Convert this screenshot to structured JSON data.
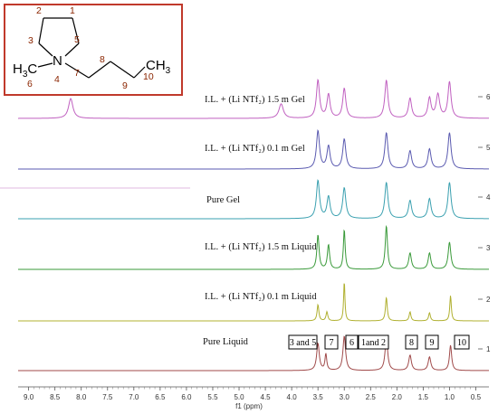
{
  "chart_data": {
    "type": "line",
    "xlabel": "f1 (ppm)",
    "xlim": [
      9.2,
      0.25
    ],
    "x_ticks": [
      "9.0",
      "8.5",
      "8.0",
      "7.5",
      "7.0",
      "6.5",
      "6.0",
      "5.5",
      "5.0",
      "4.5",
      "4.0",
      "3.5",
      "3.0",
      "2.5",
      "2.0",
      "1.5",
      "1.0",
      "0.5"
    ],
    "y_ticks": [
      "1",
      "2",
      "3",
      "4",
      "5",
      "6"
    ],
    "series": [
      {
        "name": "Pure Liquid",
        "color": "#a04a4a",
        "baseline_tick": 1,
        "peaks": [
          [
            3.5,
            0.06,
            30
          ],
          [
            3.35,
            0.04,
            18
          ],
          [
            3.0,
            0.06,
            38
          ],
          [
            2.2,
            0.06,
            36
          ],
          [
            1.75,
            0.06,
            17
          ],
          [
            1.38,
            0.06,
            15
          ],
          [
            0.98,
            0.05,
            28
          ]
        ]
      },
      {
        "name": "I.L. + (Li NTf₂) 0.1 m Liquid",
        "color": "#b0b030",
        "baseline_tick": 2,
        "peaks": [
          [
            3.5,
            0.04,
            18
          ],
          [
            3.33,
            0.04,
            10
          ],
          [
            3.0,
            0.03,
            44
          ],
          [
            2.2,
            0.04,
            26
          ],
          [
            1.75,
            0.04,
            10
          ],
          [
            1.38,
            0.04,
            9
          ],
          [
            0.98,
            0.035,
            28
          ]
        ]
      },
      {
        "name": "I.L. + (Li NTf₂) 1.5 m Liquid",
        "color": "#3a9a3a",
        "baseline_tick": 3,
        "peaks": [
          [
            3.5,
            0.05,
            38
          ],
          [
            3.3,
            0.05,
            27
          ],
          [
            3.0,
            0.04,
            44
          ],
          [
            2.2,
            0.05,
            48
          ],
          [
            1.75,
            0.06,
            18
          ],
          [
            1.38,
            0.06,
            18
          ],
          [
            1.0,
            0.06,
            30
          ]
        ]
      },
      {
        "name": "Pure Gel",
        "color": "#3aa0b0",
        "baseline_tick": 4,
        "peaks": [
          [
            3.5,
            0.07,
            42
          ],
          [
            3.3,
            0.07,
            24
          ],
          [
            3.0,
            0.07,
            34
          ],
          [
            2.2,
            0.07,
            40
          ],
          [
            1.75,
            0.07,
            20
          ],
          [
            1.38,
            0.07,
            22
          ],
          [
            1.0,
            0.07,
            40
          ]
        ]
      },
      {
        "name": "I.L. + (Li NTf₂) 0.1 m Gel",
        "color": "#5a5ab0",
        "baseline_tick": 5,
        "peaks": [
          [
            3.5,
            0.07,
            42
          ],
          [
            3.3,
            0.07,
            25
          ],
          [
            3.0,
            0.07,
            33
          ],
          [
            2.2,
            0.07,
            40
          ],
          [
            1.75,
            0.07,
            20
          ],
          [
            1.38,
            0.07,
            22
          ],
          [
            1.0,
            0.07,
            40
          ]
        ]
      },
      {
        "name": "I.L. + (Li NTf₂) 1.5 m Gel",
        "color": "#c060c0",
        "baseline_tick": 6,
        "peaks": [
          [
            8.2,
            0.1,
            22
          ],
          [
            4.2,
            0.1,
            16
          ],
          [
            3.5,
            0.07,
            42
          ],
          [
            3.3,
            0.07,
            26
          ],
          [
            3.0,
            0.07,
            33
          ],
          [
            2.2,
            0.07,
            42
          ],
          [
            1.75,
            0.07,
            22
          ],
          [
            1.38,
            0.07,
            22
          ],
          [
            1.22,
            0.08,
            26
          ],
          [
            1.0,
            0.07,
            40
          ]
        ]
      }
    ],
    "peak_assignments": [
      {
        "label": "3 and 5",
        "ppm": 3.5
      },
      {
        "label": "7",
        "ppm": 3.3
      },
      {
        "label": "6",
        "ppm": 3.0
      },
      {
        "label": "1and 2",
        "ppm": 2.2
      },
      {
        "label": "8",
        "ppm": 1.75
      },
      {
        "label": "9",
        "ppm": 1.38
      },
      {
        "label": "10",
        "ppm": 0.98
      }
    ]
  },
  "structure": {
    "atom_N": "N",
    "left_methyl": {
      "main": "H",
      "sub": "3",
      "tail": "C"
    },
    "right_methyl": {
      "main": "CH",
      "sub": "3"
    },
    "numbers": [
      "1",
      "2",
      "3",
      "4",
      "5",
      "6",
      "7",
      "8",
      "9",
      "10"
    ]
  },
  "colors": {
    "inset_border": "#c0392b",
    "annotation": "#8b2500"
  }
}
